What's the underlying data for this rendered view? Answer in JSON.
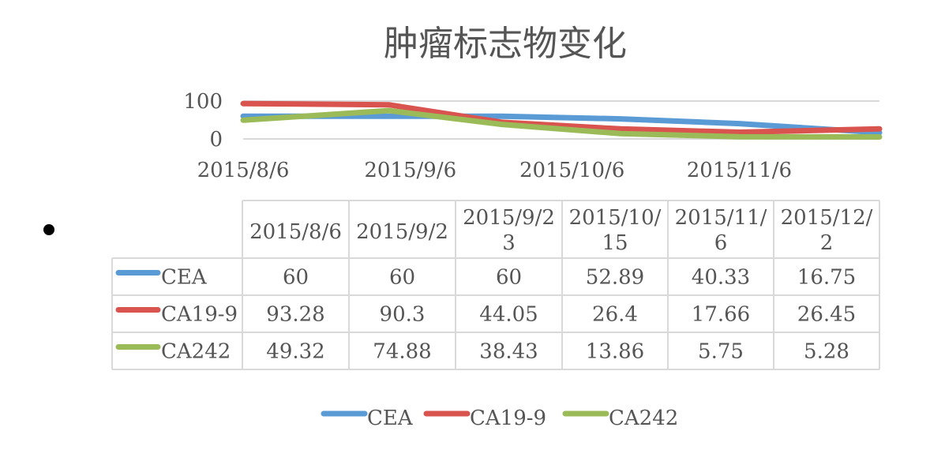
{
  "chart_data": {
    "type": "line",
    "title": "肿瘤标志物变化",
    "xlabel": "",
    "ylabel": "",
    "x": [
      "2015/8/6",
      "2015/9/2",
      "2015/9/23",
      "2015/10/15",
      "2015/11/6",
      "2015/12/2"
    ],
    "ylim": [
      0,
      100
    ],
    "y_ticks": [
      "100",
      "0"
    ],
    "x_tick_labels": [
      "2015/8/6",
      "2015/9/6",
      "2015/10/6",
      "2015/11/6"
    ],
    "x_tick_dates": [
      "2015-08-06",
      "2015-09-06",
      "2015-10-06",
      "2015-11-06"
    ],
    "grid": true,
    "legend_position": "bottom",
    "series": [
      {
        "name": "CEA",
        "color": "#5b9bd5",
        "values": [
          60,
          60,
          60,
          52.89,
          40.33,
          16.75
        ]
      },
      {
        "name": "CA19-9",
        "color": "#d9534f",
        "values": [
          93.28,
          90.3,
          44.05,
          26.4,
          17.66,
          26.45
        ]
      },
      {
        "name": "CA242",
        "color": "#9bbb59",
        "values": [
          49.32,
          74.88,
          38.43,
          13.86,
          5.75,
          5.28
        ]
      }
    ]
  },
  "table": {
    "header_lines": [
      [
        "2015/8/6"
      ],
      [
        "2015/9/2"
      ],
      [
        "2015/9/2",
        "3"
      ],
      [
        "2015/10/",
        "15"
      ],
      [
        "2015/11/",
        "6"
      ],
      [
        "2015/12/",
        "2"
      ]
    ],
    "rows": [
      {
        "label": "CEA",
        "cells": [
          "60",
          "60",
          "60",
          "52.89",
          "40.33",
          "16.75"
        ]
      },
      {
        "label": "CA19-9",
        "cells": [
          "93.28",
          "90.3",
          "44.05",
          "26.4",
          "17.66",
          "26.45"
        ]
      },
      {
        "label": "CA242",
        "cells": [
          "49.32",
          "74.88",
          "38.43",
          "13.86",
          "5.75",
          "5.28"
        ]
      }
    ]
  }
}
